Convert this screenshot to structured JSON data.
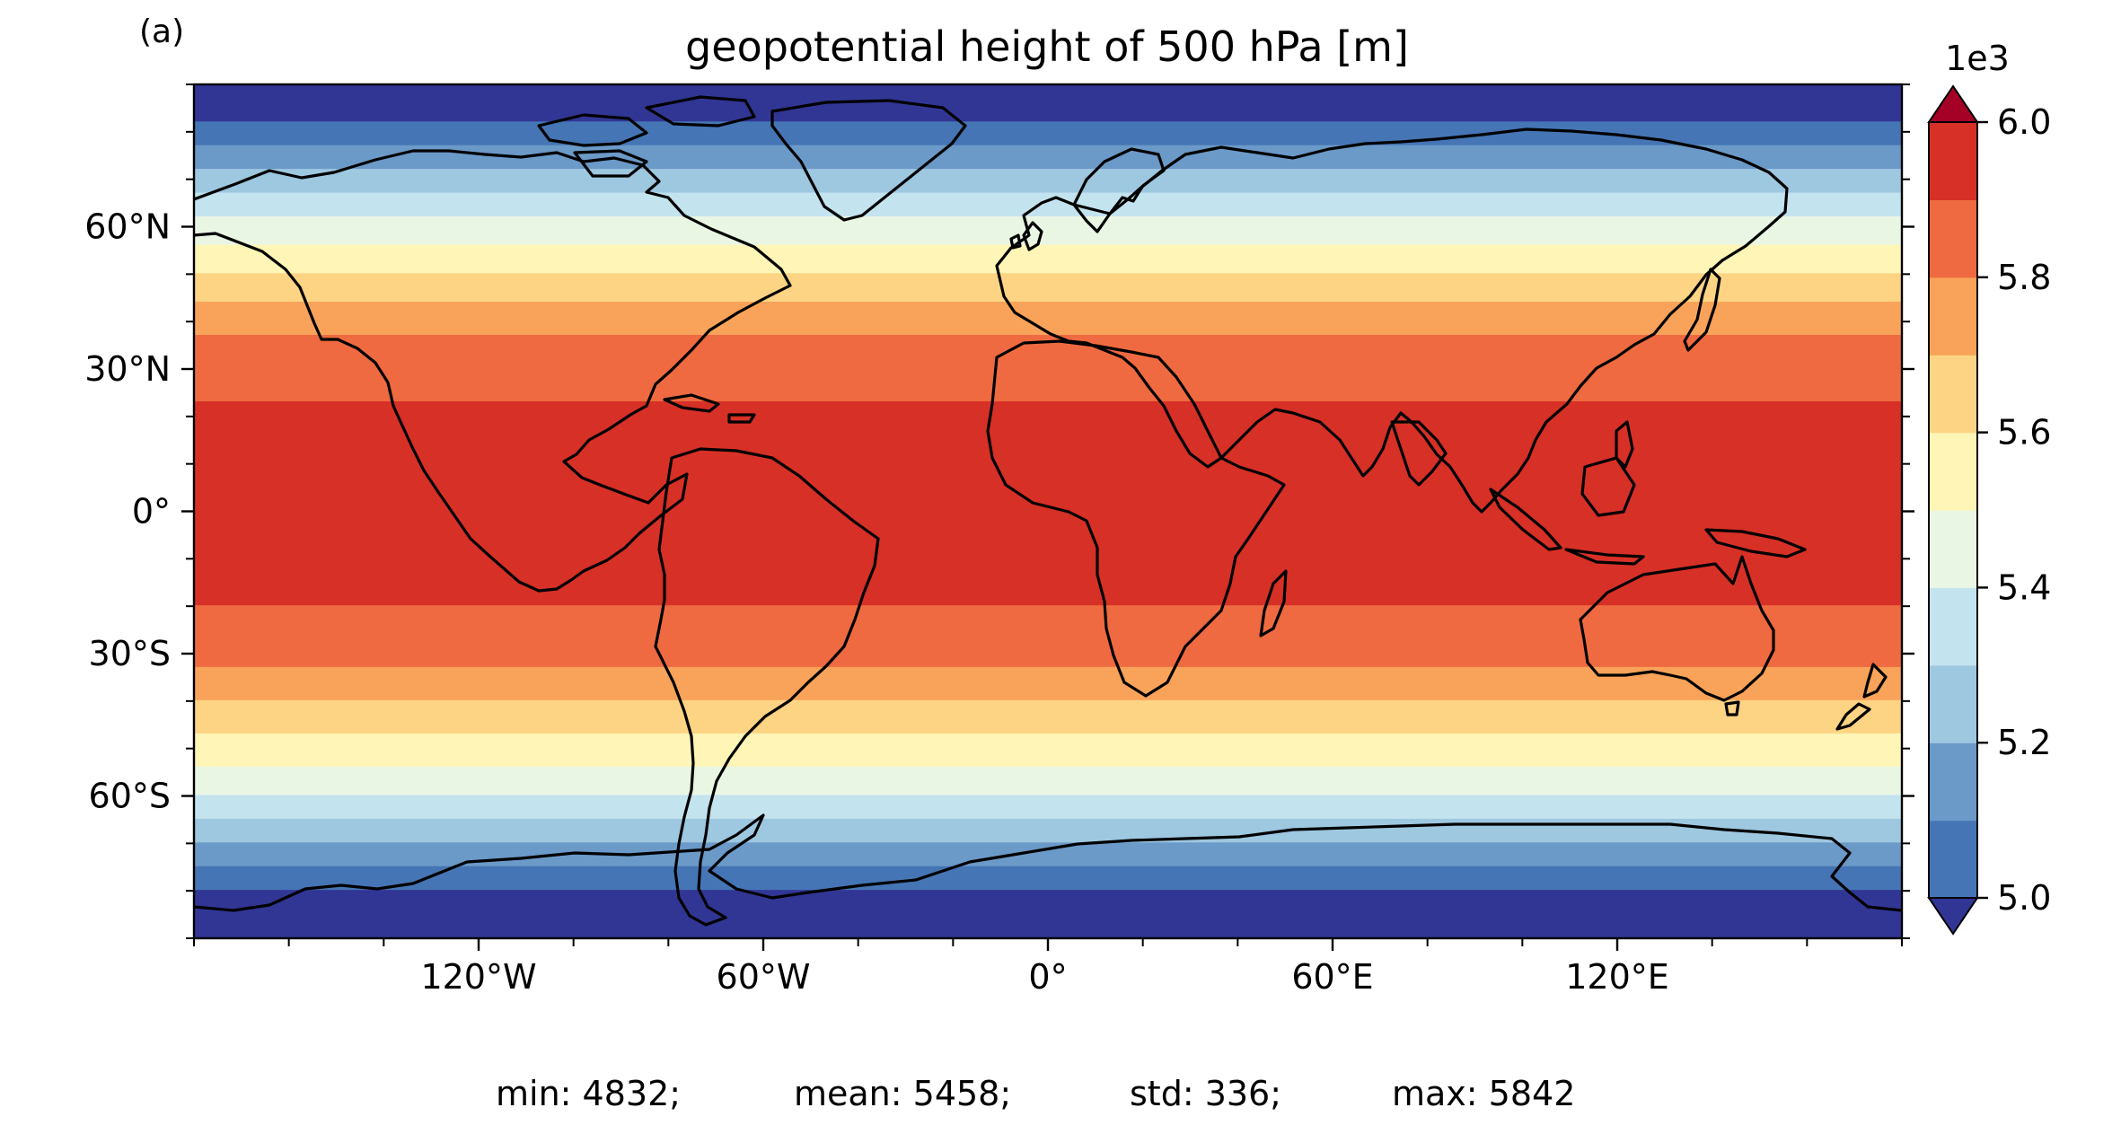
{
  "panel_label": "(a)",
  "title": "geopotential height of 500 hPa [m]",
  "map": {
    "projection": "PlateCarree",
    "lon_range": [
      -180,
      180
    ],
    "lat_range": [
      -90,
      90
    ],
    "lon_ticks": [
      {
        "value": -120,
        "label": "120°W"
      },
      {
        "value": -60,
        "label": "60°W"
      },
      {
        "value": 0,
        "label": "0°"
      },
      {
        "value": 60,
        "label": "60°E"
      },
      {
        "value": 120,
        "label": "120°E"
      }
    ],
    "lat_ticks": [
      {
        "value": 60,
        "label": "60°N"
      },
      {
        "value": 30,
        "label": "30°N"
      },
      {
        "value": 0,
        "label": "0°"
      },
      {
        "value": -30,
        "label": "30°S"
      },
      {
        "value": -60,
        "label": "60°S"
      }
    ],
    "coastline_color": "#000000",
    "field_bands": [
      {
        "lat_range": [
          82,
          90
        ],
        "level_index": 0
      },
      {
        "lat_range": [
          77,
          82
        ],
        "level_index": 1
      },
      {
        "lat_range": [
          72,
          77
        ],
        "level_index": 2
      },
      {
        "lat_range": [
          67,
          72
        ],
        "level_index": 3
      },
      {
        "lat_range": [
          62,
          67
        ],
        "level_index": 4
      },
      {
        "lat_range": [
          56,
          62
        ],
        "level_index": 5
      },
      {
        "lat_range": [
          50,
          56
        ],
        "level_index": 6
      },
      {
        "lat_range": [
          44,
          50
        ],
        "level_index": 7
      },
      {
        "lat_range": [
          37,
          44
        ],
        "level_index": 8
      },
      {
        "lat_range": [
          23,
          37
        ],
        "level_index": 9
      },
      {
        "lat_range": [
          -20,
          23
        ],
        "level_index": 10
      },
      {
        "lat_range": [
          -33,
          -20
        ],
        "level_index": 9
      },
      {
        "lat_range": [
          -40,
          -33
        ],
        "level_index": 8
      },
      {
        "lat_range": [
          -47,
          -40
        ],
        "level_index": 7
      },
      {
        "lat_range": [
          -54,
          -47
        ],
        "level_index": 6
      },
      {
        "lat_range": [
          -60,
          -54
        ],
        "level_index": 5
      },
      {
        "lat_range": [
          -65,
          -60
        ],
        "level_index": 4
      },
      {
        "lat_range": [
          -70,
          -65
        ],
        "level_index": 3
      },
      {
        "lat_range": [
          -75,
          -70
        ],
        "level_index": 2
      },
      {
        "lat_range": [
          -80,
          -75
        ],
        "level_index": 1
      },
      {
        "lat_range": [
          -90,
          -80
        ],
        "level_index": 0
      }
    ]
  },
  "colorbar": {
    "offset_label": "1e3",
    "ticks": [
      {
        "value": 5.0,
        "label": "5.0"
      },
      {
        "value": 5.2,
        "label": "5.2"
      },
      {
        "value": 5.4,
        "label": "5.4"
      },
      {
        "value": 5.6,
        "label": "5.6"
      },
      {
        "value": 5.8,
        "label": "5.8"
      },
      {
        "value": 6.0,
        "label": "6.0"
      }
    ],
    "range": [
      5.0,
      6.0
    ],
    "levels": [
      5.0,
      5.1,
      5.2,
      5.3,
      5.4,
      5.5,
      5.6,
      5.7,
      5.8,
      5.9,
      6.0
    ],
    "colors": [
      "#4575b4",
      "#6b99c8",
      "#9ec7e0",
      "#c3e3ef",
      "#eaf6e4",
      "#fef5b6",
      "#fdd484",
      "#f9a35a",
      "#ef6a41",
      "#d73027"
    ],
    "under_color": "#313695",
    "over_color": "#a50026",
    "extend": "both"
  },
  "stats": {
    "min": "min: 4832;",
    "mean": "mean: 5458;",
    "std": "std: 336;",
    "max": "max: 5842"
  }
}
